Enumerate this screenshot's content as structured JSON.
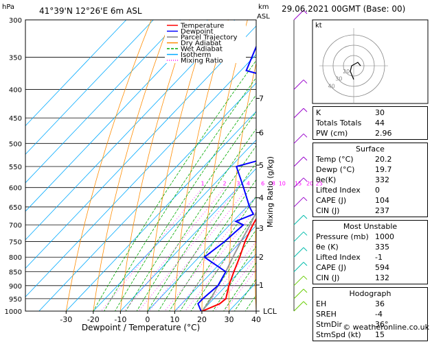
{
  "header": {
    "pressure_unit": "hPa",
    "location": "41°39'N  12°26'E  6m  ASL",
    "height_unit_1": "km",
    "height_unit_2": "ASL",
    "datetime": "29.06.2021  00GMT  (Base: 00)"
  },
  "legend": [
    {
      "label": "Temperature",
      "color": "#ff0000"
    },
    {
      "label": "Dewpoint",
      "color": "#0000ff"
    },
    {
      "label": "Parcel Trajectory",
      "color": "#808080"
    },
    {
      "label": "Dry Adiabat",
      "color": "#ff8c00"
    },
    {
      "label": "Wet Adiabat",
      "color": "#00aa00"
    },
    {
      "label": "Isotherm",
      "color": "#00aaff"
    },
    {
      "label": "Mixing Ratio",
      "color": "#ff00ff"
    }
  ],
  "chart_data": {
    "type": "line",
    "xlabel": "Dewpoint / Temperature (°C)",
    "ylabel_right": "Mixing Ratio (g/kg)",
    "x_ticks": [
      "-30",
      "-20",
      "-10",
      "0",
      "10",
      "20",
      "30",
      "40"
    ],
    "pressure_ticks": [
      "300",
      "350",
      "400",
      "450",
      "500",
      "550",
      "600",
      "650",
      "700",
      "750",
      "800",
      "850",
      "900",
      "950",
      "1000"
    ],
    "km_ticks": [
      "7",
      "6",
      "5",
      "4",
      "3",
      "2",
      "1",
      "LCL"
    ],
    "mixing_ratio_labels": [
      "1",
      "2",
      "3",
      "4",
      "6",
      "8",
      "10",
      "15",
      "20",
      "25"
    ],
    "series": [
      {
        "name": "Temperature",
        "points": [
          [
            1000,
            20.2
          ],
          [
            970,
            24
          ],
          [
            950,
            24.5
          ],
          [
            900,
            21
          ],
          [
            850,
            18
          ],
          [
            800,
            15
          ],
          [
            750,
            11.5
          ],
          [
            700,
            8.5
          ],
          [
            650,
            6
          ],
          [
            600,
            1
          ],
          [
            550,
            -3.5
          ],
          [
            500,
            -8
          ],
          [
            450,
            -14
          ],
          [
            400,
            -21
          ],
          [
            350,
            -28.5
          ],
          [
            300,
            -38
          ]
        ]
      },
      {
        "name": "Dewpoint",
        "points": [
          [
            1000,
            19.7
          ],
          [
            970,
            16
          ],
          [
            950,
            16
          ],
          [
            900,
            17
          ],
          [
            850,
            15
          ],
          [
            800,
            2
          ],
          [
            750,
            4
          ],
          [
            700,
            5
          ],
          [
            690,
            1
          ],
          [
            670,
            5
          ],
          [
            650,
            1
          ],
          [
            600,
            -8
          ],
          [
            550,
            -18
          ],
          [
            530,
            -9
          ],
          [
            520,
            -4
          ],
          [
            500,
            -13
          ],
          [
            450,
            -23
          ],
          [
            400,
            -16
          ],
          [
            370,
            -48
          ],
          [
            300,
            -58
          ]
        ]
      },
      {
        "name": "Parcel Trajectory",
        "points": [
          [
            1000,
            20.2
          ],
          [
            950,
            19
          ],
          [
            900,
            17
          ],
          [
            850,
            15
          ],
          [
            800,
            12.5
          ],
          [
            750,
            10
          ],
          [
            700,
            7.5
          ],
          [
            650,
            4.5
          ],
          [
            600,
            1
          ],
          [
            550,
            -3
          ],
          [
            500,
            -8
          ],
          [
            450,
            -14
          ],
          [
            400,
            -21
          ],
          [
            350,
            -29
          ],
          [
            300,
            -38
          ]
        ]
      }
    ]
  },
  "hodograph": {
    "label": "kt",
    "ring_labels": [
      "40",
      "30",
      "20"
    ]
  },
  "stats": {
    "indices": [
      {
        "label": "K",
        "value": "30"
      },
      {
        "label": "Totals Totals",
        "value": "44"
      },
      {
        "label": "PW (cm)",
        "value": "2.96"
      }
    ],
    "surface_title": "Surface",
    "surface": [
      {
        "label": "Temp (°C)",
        "value": "20.2"
      },
      {
        "label": "Dewp (°C)",
        "value": "19.7"
      },
      {
        "label": "θe(K)",
        "value": "332"
      },
      {
        "label": "Lifted Index",
        "value": "0"
      },
      {
        "label": "CAPE (J)",
        "value": "104"
      },
      {
        "label": "CIN (J)",
        "value": "237"
      }
    ],
    "unstable_title": "Most Unstable",
    "unstable": [
      {
        "label": "Pressure (mb)",
        "value": "1000"
      },
      {
        "label": "θe (K)",
        "value": "335"
      },
      {
        "label": "Lifted Index",
        "value": "-1"
      },
      {
        "label": "CAPE (J)",
        "value": "594"
      },
      {
        "label": "CIN (J)",
        "value": "132"
      }
    ],
    "hodo_title": "Hodograph",
    "hodo": [
      {
        "label": "EH",
        "value": "36"
      },
      {
        "label": "SREH",
        "value": "-4"
      },
      {
        "label": "StmDir",
        "value": "36°"
      },
      {
        "label": "StmSpd (kt)",
        "value": "15"
      }
    ]
  },
  "footer": "© weatheronline.co.uk"
}
